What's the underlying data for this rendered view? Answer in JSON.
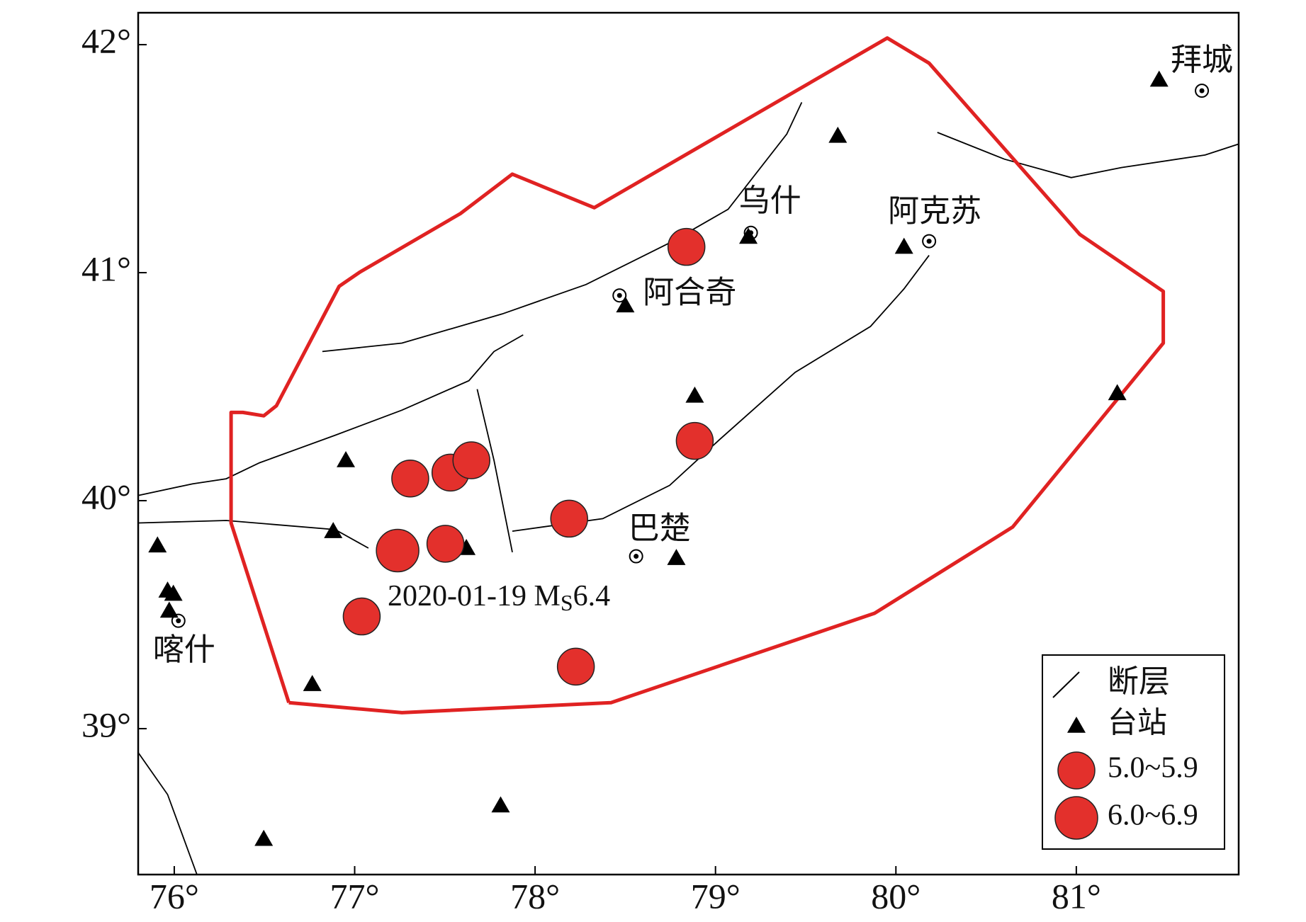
{
  "chart_data": {
    "type": "map",
    "xlim": [
      75.8,
      81.9
    ],
    "ylim": [
      38.36,
      42.14
    ],
    "xticks": [
      {
        "value": 76,
        "label": "76°"
      },
      {
        "value": 77,
        "label": "77°"
      },
      {
        "value": 78,
        "label": "78°"
      },
      {
        "value": 79,
        "label": "79°"
      },
      {
        "value": 80,
        "label": "80°"
      },
      {
        "value": 81,
        "label": "81°"
      }
    ],
    "yticks": [
      {
        "value": 39,
        "label": "39°"
      },
      {
        "value": 40,
        "label": "40°"
      },
      {
        "value": 41,
        "label": "41°"
      },
      {
        "value": 42,
        "label": "42°"
      }
    ],
    "boundary": {
      "color": "#e02222",
      "x": [
        76.635,
        76.315,
        76.315,
        76.38,
        76.496,
        76.566,
        76.914,
        77.03,
        77.586,
        77.874,
        78.328,
        79.952,
        80.184,
        81.019,
        81.482,
        81.482,
        80.647,
        79.882,
        78.421,
        77.262,
        76.635
      ],
      "values": [
        39.114,
        39.902,
        40.387,
        40.387,
        40.372,
        40.416,
        40.94,
        41.003,
        41.259,
        41.432,
        41.285,
        42.029,
        41.919,
        41.168,
        40.918,
        40.691,
        39.884,
        39.506,
        39.114,
        39.07,
        39.114
      ]
    },
    "faults": {
      "name": "断层",
      "color": "#000000",
      "lines": [
        {
          "x": [
            75.801,
            76.102,
            76.288,
            76.473,
            76.892,
            77.262,
            77.633,
            77.772,
            77.934
          ],
          "values": [
            40.023,
            40.074,
            40.096,
            40.166,
            40.287,
            40.397,
            40.526,
            40.654,
            40.727
          ]
        },
        {
          "x": [
            76.821,
            77.262,
            77.818,
            78.282,
            78.746,
            79.07,
            79.395,
            79.478
          ],
          "values": [
            40.654,
            40.691,
            40.819,
            40.948,
            41.131,
            41.278,
            41.608,
            41.747
          ]
        },
        {
          "x": [
            77.874,
            78.375,
            78.746,
            79.024,
            79.442,
            79.859,
            80.045,
            80.184
          ],
          "values": [
            39.866,
            39.921,
            40.067,
            40.269,
            40.563,
            40.764,
            40.929,
            41.076
          ]
        },
        {
          "x": [
            75.801,
            76.288,
            76.892,
            77.076
          ],
          "values": [
            39.902,
            39.913,
            39.873,
            39.792
          ]
        },
        {
          "x": [
            77.679,
            77.772,
            77.874
          ],
          "values": [
            40.489,
            40.177,
            39.774
          ]
        },
        {
          "x": [
            80.23,
            80.601,
            80.972,
            81.25,
            81.714,
            81.9
          ],
          "values": [
            41.615,
            41.498,
            41.417,
            41.461,
            41.516,
            41.564
          ]
        },
        {
          "x": [
            75.801,
            75.963,
            76.125
          ],
          "values": [
            38.894,
            38.711,
            38.362
          ]
        }
      ]
    },
    "series": [
      {
        "name": "台站",
        "marker": "triangle",
        "color": "#000000",
        "x": [
          81.459,
          79.678,
          79.182,
          80.045,
          78.5,
          78.885,
          81.227,
          76.951,
          76.881,
          77.619,
          78.783,
          75.907,
          75.963,
          75.995,
          75.972,
          76.765,
          77.809,
          76.496
        ],
        "values": [
          41.846,
          41.6,
          41.157,
          41.113,
          40.856,
          40.46,
          40.471,
          40.177,
          39.866,
          39.792,
          39.748,
          39.803,
          39.605,
          39.591,
          39.517,
          39.195,
          38.663,
          38.516
        ]
      },
      {
        "name": "5.0~5.9",
        "marker": "circle",
        "color": "#e3302c",
        "x": [
          78.839,
          77.308,
          77.531,
          77.647,
          78.189,
          78.885,
          77.503,
          77.039,
          78.226
        ],
        "values": [
          41.113,
          40.097,
          40.123,
          40.177,
          39.921,
          40.262,
          39.811,
          39.492,
          39.272
        ]
      },
      {
        "name": "6.0~6.9",
        "marker": "circle",
        "color": "#e3302c",
        "x": [
          77.238
        ],
        "values": [
          39.781
        ]
      }
    ],
    "cities": [
      {
        "name": "拜城",
        "x": 81.696,
        "y": 41.798
      },
      {
        "name": "乌什",
        "x": 79.196,
        "y": 41.175
      },
      {
        "name": "阿克苏",
        "x": 80.184,
        "y": 41.138
      },
      {
        "name": "阿合奇",
        "x": 78.468,
        "y": 40.9
      },
      {
        "name": "巴楚",
        "x": 78.56,
        "y": 39.756
      },
      {
        "name": "喀什",
        "x": 76.023,
        "y": 39.473
      }
    ],
    "annotation": {
      "text": "2020-01-19 M",
      "sub": "S",
      "tail": "6.4"
    },
    "legend": "lower right"
  }
}
